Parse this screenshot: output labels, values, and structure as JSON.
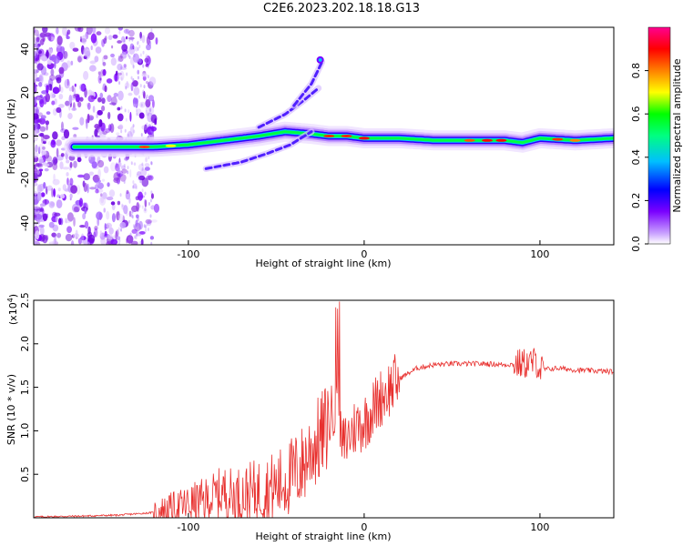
{
  "title": "C2E6.2023.202.18.18.G13",
  "chart_data": [
    {
      "type": "heatmap",
      "title": "C2E6.2023.202.18.18.G13",
      "xlabel": "Height of straight line (km)",
      "ylabel": "Frequency (Hz)",
      "xlim": [
        -188,
        142
      ],
      "ylim": [
        -50,
        50
      ],
      "xticks": [
        -100,
        0,
        100
      ],
      "yticks": [
        -40,
        -20,
        0,
        20,
        40
      ],
      "colorbar": {
        "label": "Normalized spectral amplitude",
        "range": [
          0,
          1
        ],
        "ticks": [
          0.0,
          0.2,
          0.4,
          0.6,
          0.8
        ],
        "colormap": [
          "#ffffff",
          "#7a00ff",
          "#0000ff",
          "#00e5ff",
          "#00ff00",
          "#ffff00",
          "#ff8000",
          "#ff0000",
          "#ff0090"
        ]
      },
      "ridges": [
        {
          "x": [
            -165,
            -140,
            -120,
            -100,
            -80,
            -60,
            -45,
            -30,
            -20,
            -10,
            0,
            20,
            40,
            60,
            80,
            90,
            100,
            120,
            142
          ],
          "y": [
            -5,
            -5,
            -5,
            -4,
            -2,
            0,
            2,
            1,
            0,
            0,
            -1,
            -1,
            -2,
            -2,
            -2,
            -3,
            -1,
            -2,
            -1
          ]
        }
      ],
      "harmonics": [
        {
          "x": [
            -90,
            -70,
            -55,
            -42,
            -30
          ],
          "y": [
            -15,
            -12,
            -8,
            -4,
            2
          ]
        },
        {
          "x": [
            -60,
            -45,
            -35,
            -26
          ],
          "y": [
            4,
            10,
            16,
            22
          ]
        },
        {
          "x": [
            -40,
            -30,
            -24
          ],
          "y": [
            14,
            24,
            34
          ]
        }
      ]
    },
    {
      "type": "line",
      "xlabel": "Height of straight line (km)",
      "ylabel": "SNR (10 * v/v)",
      "yscale_note": "(x10",
      "yscale_exp": "4",
      "xlim": [
        -188,
        142
      ],
      "ylim": [
        0,
        2.5
      ],
      "xticks": [
        -100,
        0,
        100
      ],
      "yticks": [
        0.5,
        1.0,
        1.5,
        2.0,
        2.5
      ],
      "color": "#e8302e",
      "series": [
        {
          "x": [
            -188,
            -160,
            -140,
            -120,
            -110,
            -100,
            -90,
            -80,
            -75,
            -70,
            -60,
            -50,
            -40,
            -35,
            -30,
            -25,
            -20,
            -17,
            -15,
            -13,
            -10,
            -5,
            0,
            5,
            10,
            20,
            30,
            40,
            50,
            60,
            70,
            80,
            90,
            95,
            98,
            100,
            110,
            120,
            130,
            142
          ],
          "y": [
            0.01,
            0.02,
            0.03,
            0.06,
            0.1,
            0.15,
            0.2,
            0.3,
            0.25,
            0.25,
            0.3,
            0.35,
            0.5,
            0.6,
            0.8,
            0.9,
            1.1,
            1.3,
            1.6,
            0.8,
            0.9,
            1.05,
            1.1,
            1.25,
            1.4,
            1.6,
            1.72,
            1.76,
            1.77,
            1.77,
            1.77,
            1.76,
            1.77,
            1.78,
            1.8,
            1.7,
            1.72,
            1.7,
            1.69,
            1.68
          ]
        }
      ]
    }
  ]
}
